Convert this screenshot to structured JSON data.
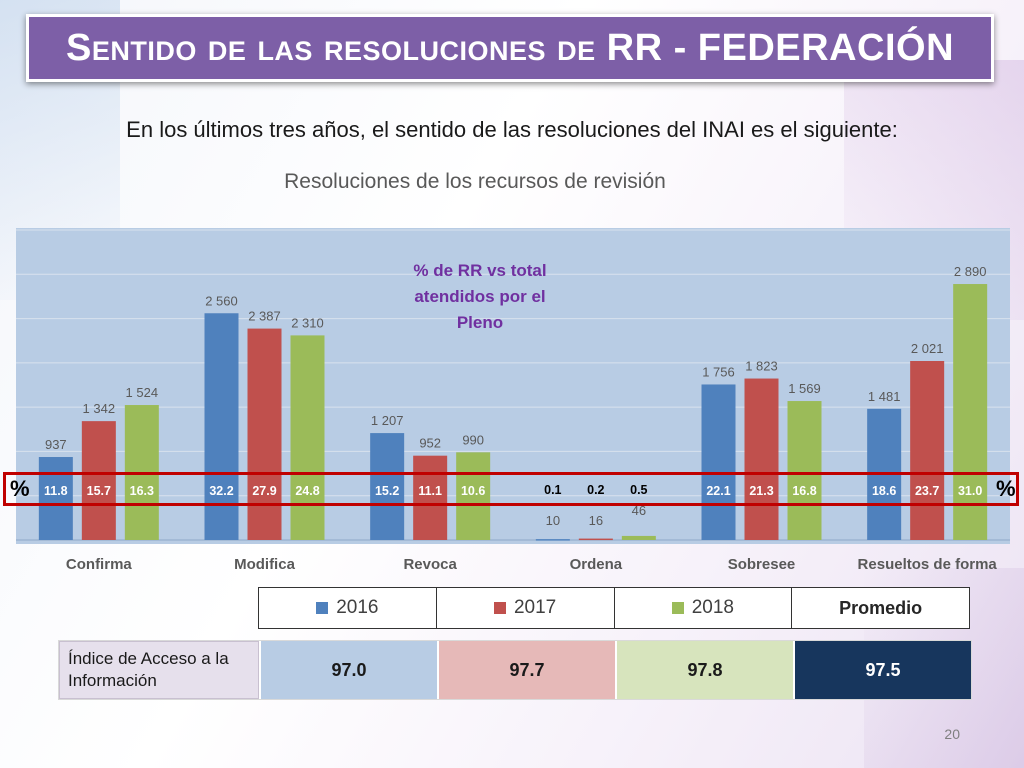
{
  "slide": {
    "title": "Sentido de las resoluciones de RR - FEDERACIÓN",
    "subtitle": "En los últimos tres años, el sentido de las resoluciones del INAI es el siguiente:",
    "page_number": "20"
  },
  "colors": {
    "s2016": "#4f81bd",
    "s2017": "#c0504d",
    "s2018": "#9bbb59",
    "annotation": "#7030a0",
    "highlight": "#c00000",
    "title_bg": "#7d5fa7"
  },
  "chart_data": {
    "type": "bar",
    "title": "Resoluciones de los recursos de revisión",
    "annotation": "% de RR vs total atendidos por el Pleno",
    "percent_symbol": "%",
    "categories": [
      "Confirma",
      "Modifica",
      "Revoca",
      "Ordena",
      "Sobresee",
      "Resueltos de forma"
    ],
    "series": [
      {
        "name": "2016",
        "values": [
          937,
          2560,
          1207,
          10,
          1756,
          1481
        ],
        "labels": [
          "937",
          "2 560",
          "1 207",
          "10",
          "1 756",
          "1 481"
        ],
        "percentages": [
          "11.8",
          "32.2",
          "15.2",
          "0.1",
          "22.1",
          "18.6"
        ]
      },
      {
        "name": "2017",
        "values": [
          1342,
          2387,
          952,
          16,
          1823,
          2021
        ],
        "labels": [
          "1 342",
          "2 387",
          "952",
          "16",
          "1 823",
          "2 021"
        ],
        "percentages": [
          "15.7",
          "27.9",
          "11.1",
          "0.2",
          "21.3",
          "23.7"
        ]
      },
      {
        "name": "2018",
        "values": [
          1524,
          2310,
          990,
          46,
          1569,
          2890
        ],
        "labels": [
          "1 524",
          "2 310",
          "990",
          "46",
          "1 569",
          "2 890"
        ],
        "percentages": [
          "16.3",
          "24.8",
          "10.6",
          "0.5",
          "16.8",
          "31.0"
        ]
      }
    ],
    "ylim": [
      0,
      3500
    ],
    "grid": true
  },
  "legend": {
    "items": [
      "2016",
      "2017",
      "2018"
    ],
    "average_label": "Promedio"
  },
  "access_index": {
    "label": "Índice de Acceso a la Información",
    "values": [
      "97.0",
      "97.7",
      "97.8",
      "97.5"
    ],
    "colors": [
      "#b8cce4",
      "#e6b9b8",
      "#d7e4bd",
      "#17365d"
    ],
    "text_colors": [
      "#1a1a1a",
      "#1a1a1a",
      "#1a1a1a",
      "#ffffff"
    ]
  }
}
